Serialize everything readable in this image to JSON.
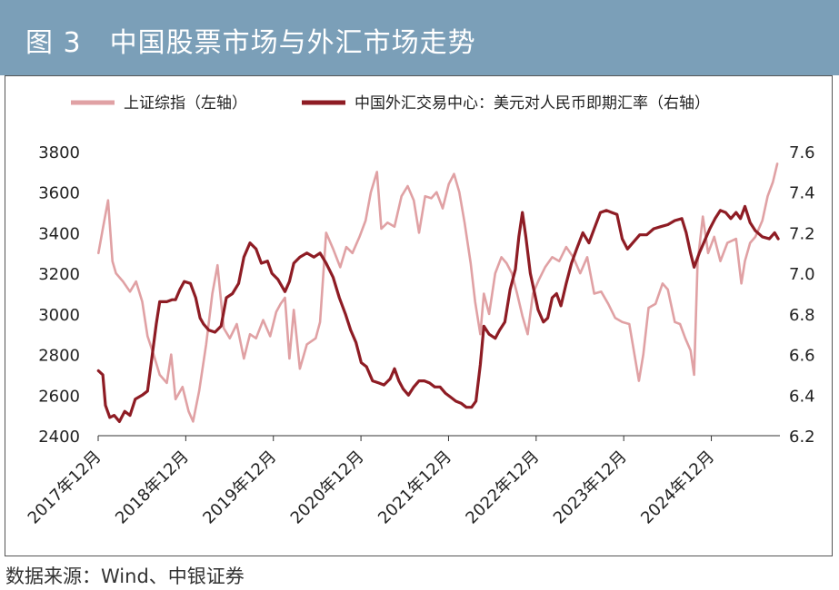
{
  "header": {
    "title": "图 3　中国股票市场与外汇市场走势"
  },
  "source": {
    "text": "数据来源：Wind、中银证券"
  },
  "colors": {
    "header_bg": "#7b9fb8",
    "left_series": "#e0a1a4",
    "right_series": "#8e1c24"
  },
  "chart_data": {
    "type": "line",
    "title": "中国股票市场与外汇市场走势",
    "x_tick_labels": [
      "2017年12月",
      "2018年12月",
      "2019年12月",
      "2020年12月",
      "2021年12月",
      "2022年12月",
      "2023年12月",
      "2024年12月"
    ],
    "x_range": [
      2017.917,
      2025.7
    ],
    "y_left": {
      "label": "上证综指（左轴）",
      "ticks": [
        "3800",
        "3600",
        "3400",
        "3200",
        "3000",
        "2800",
        "2600",
        "2400"
      ],
      "ylim": [
        2400,
        3800
      ]
    },
    "y_right": {
      "label": "中国外汇交易中心：美元对人民币即期汇率（右轴）",
      "ticks": [
        "7.6",
        "7.4",
        "7.2",
        "7.0",
        "6.8",
        "6.6",
        "6.4",
        "6.2"
      ],
      "ylim": [
        6.2,
        7.6
      ]
    },
    "legend": [
      "上证综指（左轴）",
      "中国外汇交易中心：美元对人民币即期汇率（右轴）"
    ],
    "series": [
      {
        "name": "上证综指（左轴）",
        "axis": "left",
        "points": [
          [
            2017.92,
            3300
          ],
          [
            2017.97,
            3420
          ],
          [
            2018.03,
            3560
          ],
          [
            2018.08,
            3260
          ],
          [
            2018.12,
            3200
          ],
          [
            2018.2,
            3160
          ],
          [
            2018.28,
            3110
          ],
          [
            2018.35,
            3160
          ],
          [
            2018.42,
            3060
          ],
          [
            2018.48,
            2890
          ],
          [
            2018.55,
            2800
          ],
          [
            2018.62,
            2700
          ],
          [
            2018.7,
            2660
          ],
          [
            2018.75,
            2800
          ],
          [
            2018.8,
            2580
          ],
          [
            2018.88,
            2640
          ],
          [
            2018.95,
            2520
          ],
          [
            2019.0,
            2470
          ],
          [
            2019.07,
            2620
          ],
          [
            2019.15,
            2850
          ],
          [
            2019.22,
            3100
          ],
          [
            2019.28,
            3240
          ],
          [
            2019.35,
            2930
          ],
          [
            2019.42,
            2880
          ],
          [
            2019.5,
            2950
          ],
          [
            2019.58,
            2780
          ],
          [
            2019.65,
            2900
          ],
          [
            2019.72,
            2880
          ],
          [
            2019.8,
            2970
          ],
          [
            2019.88,
            2890
          ],
          [
            2019.95,
            3010
          ],
          [
            2020.0,
            3050
          ],
          [
            2020.05,
            3080
          ],
          [
            2020.1,
            2780
          ],
          [
            2020.15,
            3020
          ],
          [
            2020.22,
            2730
          ],
          [
            2020.3,
            2850
          ],
          [
            2020.4,
            2880
          ],
          [
            2020.45,
            2960
          ],
          [
            2020.52,
            3400
          ],
          [
            2020.6,
            3320
          ],
          [
            2020.68,
            3230
          ],
          [
            2020.75,
            3330
          ],
          [
            2020.82,
            3300
          ],
          [
            2020.9,
            3380
          ],
          [
            2020.97,
            3460
          ],
          [
            2021.03,
            3600
          ],
          [
            2021.1,
            3700
          ],
          [
            2021.15,
            3420
          ],
          [
            2021.22,
            3450
          ],
          [
            2021.3,
            3430
          ],
          [
            2021.38,
            3580
          ],
          [
            2021.45,
            3630
          ],
          [
            2021.52,
            3560
          ],
          [
            2021.58,
            3400
          ],
          [
            2021.65,
            3580
          ],
          [
            2021.72,
            3570
          ],
          [
            2021.78,
            3600
          ],
          [
            2021.85,
            3520
          ],
          [
            2021.92,
            3640
          ],
          [
            2021.98,
            3690
          ],
          [
            2022.04,
            3600
          ],
          [
            2022.1,
            3450
          ],
          [
            2022.17,
            3250
          ],
          [
            2022.22,
            3060
          ],
          [
            2022.28,
            2900
          ],
          [
            2022.32,
            3100
          ],
          [
            2022.38,
            3000
          ],
          [
            2022.45,
            3200
          ],
          [
            2022.52,
            3280
          ],
          [
            2022.58,
            3250
          ],
          [
            2022.64,
            3200
          ],
          [
            2022.7,
            3100
          ],
          [
            2022.76,
            2990
          ],
          [
            2022.82,
            2900
          ],
          [
            2022.88,
            3100
          ],
          [
            2022.95,
            3170
          ],
          [
            2023.02,
            3230
          ],
          [
            2023.1,
            3280
          ],
          [
            2023.18,
            3260
          ],
          [
            2023.26,
            3330
          ],
          [
            2023.34,
            3280
          ],
          [
            2023.42,
            3200
          ],
          [
            2023.5,
            3280
          ],
          [
            2023.58,
            3100
          ],
          [
            2023.66,
            3110
          ],
          [
            2023.74,
            3050
          ],
          [
            2023.82,
            2980
          ],
          [
            2023.9,
            2960
          ],
          [
            2023.98,
            2950
          ],
          [
            2024.04,
            2800
          ],
          [
            2024.09,
            2670
          ],
          [
            2024.14,
            2800
          ],
          [
            2024.2,
            3030
          ],
          [
            2024.28,
            3050
          ],
          [
            2024.36,
            3150
          ],
          [
            2024.42,
            3120
          ],
          [
            2024.5,
            2960
          ],
          [
            2024.56,
            2950
          ],
          [
            2024.62,
            2880
          ],
          [
            2024.68,
            2820
          ],
          [
            2024.72,
            2700
          ],
          [
            2024.76,
            3250
          ],
          [
            2024.82,
            3480
          ],
          [
            2024.88,
            3300
          ],
          [
            2024.95,
            3380
          ],
          [
            2025.02,
            3260
          ],
          [
            2025.1,
            3350
          ],
          [
            2025.2,
            3370
          ],
          [
            2025.26,
            3150
          ],
          [
            2025.3,
            3260
          ],
          [
            2025.36,
            3350
          ],
          [
            2025.42,
            3380
          ],
          [
            2025.5,
            3460
          ],
          [
            2025.56,
            3580
          ],
          [
            2025.62,
            3650
          ],
          [
            2025.67,
            3740
          ]
        ]
      },
      {
        "name": "中国外汇交易中心：美元对人民币即期汇率（右轴）",
        "axis": "right",
        "points": [
          [
            2017.92,
            6.52
          ],
          [
            2017.97,
            6.5
          ],
          [
            2018.0,
            6.35
          ],
          [
            2018.05,
            6.29
          ],
          [
            2018.1,
            6.3
          ],
          [
            2018.16,
            6.27
          ],
          [
            2018.22,
            6.32
          ],
          [
            2018.28,
            6.3
          ],
          [
            2018.34,
            6.38
          ],
          [
            2018.42,
            6.4
          ],
          [
            2018.48,
            6.42
          ],
          [
            2018.52,
            6.55
          ],
          [
            2018.58,
            6.75
          ],
          [
            2018.62,
            6.86
          ],
          [
            2018.7,
            6.86
          ],
          [
            2018.76,
            6.87
          ],
          [
            2018.8,
            6.87
          ],
          [
            2018.85,
            6.92
          ],
          [
            2018.9,
            6.96
          ],
          [
            2018.97,
            6.95
          ],
          [
            2019.03,
            6.88
          ],
          [
            2019.08,
            6.78
          ],
          [
            2019.12,
            6.75
          ],
          [
            2019.18,
            6.72
          ],
          [
            2019.25,
            6.71
          ],
          [
            2019.32,
            6.74
          ],
          [
            2019.38,
            6.88
          ],
          [
            2019.45,
            6.9
          ],
          [
            2019.52,
            6.95
          ],
          [
            2019.58,
            7.08
          ],
          [
            2019.65,
            7.15
          ],
          [
            2019.72,
            7.12
          ],
          [
            2019.78,
            7.05
          ],
          [
            2019.85,
            7.06
          ],
          [
            2019.9,
            7.0
          ],
          [
            2019.97,
            6.97
          ],
          [
            2020.05,
            6.91
          ],
          [
            2020.1,
            6.96
          ],
          [
            2020.15,
            7.05
          ],
          [
            2020.22,
            7.08
          ],
          [
            2020.3,
            7.1
          ],
          [
            2020.38,
            7.08
          ],
          [
            2020.45,
            7.1
          ],
          [
            2020.52,
            7.05
          ],
          [
            2020.6,
            6.98
          ],
          [
            2020.67,
            6.88
          ],
          [
            2020.74,
            6.8
          ],
          [
            2020.8,
            6.72
          ],
          [
            2020.86,
            6.66
          ],
          [
            2020.92,
            6.56
          ],
          [
            2020.98,
            6.54
          ],
          [
            2021.05,
            6.47
          ],
          [
            2021.12,
            6.46
          ],
          [
            2021.18,
            6.45
          ],
          [
            2021.25,
            6.48
          ],
          [
            2021.3,
            6.53
          ],
          [
            2021.35,
            6.47
          ],
          [
            2021.4,
            6.43
          ],
          [
            2021.46,
            6.4
          ],
          [
            2021.52,
            6.44
          ],
          [
            2021.58,
            6.47
          ],
          [
            2021.64,
            6.47
          ],
          [
            2021.7,
            6.46
          ],
          [
            2021.76,
            6.44
          ],
          [
            2021.82,
            6.44
          ],
          [
            2021.88,
            6.41
          ],
          [
            2021.94,
            6.39
          ],
          [
            2022.0,
            6.37
          ],
          [
            2022.06,
            6.36
          ],
          [
            2022.12,
            6.34
          ],
          [
            2022.18,
            6.34
          ],
          [
            2022.23,
            6.37
          ],
          [
            2022.28,
            6.55
          ],
          [
            2022.32,
            6.74
          ],
          [
            2022.38,
            6.7
          ],
          [
            2022.45,
            6.68
          ],
          [
            2022.5,
            6.72
          ],
          [
            2022.56,
            6.76
          ],
          [
            2022.62,
            6.92
          ],
          [
            2022.68,
            7.02
          ],
          [
            2022.72,
            7.18
          ],
          [
            2022.76,
            7.3
          ],
          [
            2022.8,
            7.18
          ],
          [
            2022.85,
            7.0
          ],
          [
            2022.9,
            6.9
          ],
          [
            2022.94,
            6.82
          ],
          [
            2023.0,
            6.76
          ],
          [
            2023.05,
            6.78
          ],
          [
            2023.1,
            6.88
          ],
          [
            2023.15,
            6.9
          ],
          [
            2023.2,
            6.84
          ],
          [
            2023.26,
            6.95
          ],
          [
            2023.32,
            7.05
          ],
          [
            2023.38,
            7.12
          ],
          [
            2023.45,
            7.2
          ],
          [
            2023.52,
            7.15
          ],
          [
            2023.58,
            7.22
          ],
          [
            2023.65,
            7.3
          ],
          [
            2023.72,
            7.31
          ],
          [
            2023.78,
            7.3
          ],
          [
            2023.84,
            7.29
          ],
          [
            2023.9,
            7.17
          ],
          [
            2023.96,
            7.12
          ],
          [
            2024.02,
            7.15
          ],
          [
            2024.1,
            7.19
          ],
          [
            2024.18,
            7.19
          ],
          [
            2024.26,
            7.22
          ],
          [
            2024.34,
            7.23
          ],
          [
            2024.42,
            7.24
          ],
          [
            2024.5,
            7.26
          ],
          [
            2024.58,
            7.27
          ],
          [
            2024.63,
            7.2
          ],
          [
            2024.68,
            7.1
          ],
          [
            2024.72,
            7.03
          ],
          [
            2024.78,
            7.1
          ],
          [
            2024.84,
            7.16
          ],
          [
            2024.9,
            7.22
          ],
          [
            2024.96,
            7.27
          ],
          [
            2025.02,
            7.31
          ],
          [
            2025.08,
            7.3
          ],
          [
            2025.14,
            7.27
          ],
          [
            2025.2,
            7.3
          ],
          [
            2025.25,
            7.27
          ],
          [
            2025.3,
            7.33
          ],
          [
            2025.36,
            7.25
          ],
          [
            2025.42,
            7.21
          ],
          [
            2025.5,
            7.18
          ],
          [
            2025.58,
            7.17
          ],
          [
            2025.64,
            7.2
          ],
          [
            2025.68,
            7.17
          ]
        ]
      }
    ]
  }
}
